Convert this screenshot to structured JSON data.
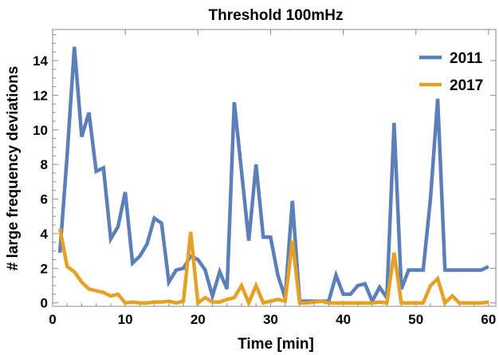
{
  "chart_data": {
    "type": "line",
    "title": "Threshold 100mHz",
    "xlabel": "Time [min]",
    "ylabel": "# large frequency deviations",
    "xlim": [
      0,
      61
    ],
    "ylim": [
      -0.2,
      15.8
    ],
    "xticks": [
      0,
      10,
      20,
      30,
      40,
      50,
      60
    ],
    "yticks": [
      0,
      2,
      4,
      6,
      8,
      10,
      12,
      14
    ],
    "grid": false,
    "legend": "top-right",
    "x": [
      1,
      2,
      3,
      4,
      5,
      6,
      7,
      8,
      9,
      10,
      11,
      12,
      13,
      14,
      15,
      16,
      17,
      18,
      19,
      20,
      21,
      22,
      23,
      24,
      25,
      26,
      27,
      28,
      29,
      30,
      31,
      32,
      33,
      34,
      35,
      36,
      37,
      38,
      39,
      40,
      41,
      42,
      43,
      44,
      45,
      46,
      47,
      48,
      49,
      50,
      51,
      52,
      53,
      54,
      55,
      56,
      57,
      58,
      59,
      60
    ],
    "series": [
      {
        "name": "2011",
        "color": "#5b7fb8",
        "values": [
          2.9,
          8.5,
          14.8,
          9.6,
          11.0,
          7.6,
          7.8,
          3.7,
          4.4,
          6.4,
          2.3,
          2.7,
          3.4,
          4.9,
          4.6,
          1.2,
          1.9,
          2.0,
          2.7,
          2.5,
          1.9,
          0.4,
          1.8,
          0.8,
          11.6,
          7.6,
          3.6,
          8.0,
          3.8,
          3.8,
          1.6,
          0.3,
          5.9,
          0.1,
          0.1,
          0.1,
          0.1,
          0.1,
          1.6,
          0.5,
          0.5,
          1.0,
          1.1,
          0.1,
          0.9,
          0.3,
          10.4,
          0.8,
          1.9,
          1.9,
          1.9,
          6.0,
          11.8,
          1.9,
          1.9,
          1.9,
          1.9,
          1.9,
          1.9,
          2.1
        ]
      },
      {
        "name": "2017",
        "color": "#e5a126",
        "values": [
          4.3,
          2.1,
          1.8,
          1.2,
          0.8,
          0.7,
          0.6,
          0.4,
          0.5,
          0.0,
          0.05,
          0.0,
          0.0,
          0.05,
          0.05,
          0.1,
          0.0,
          0.1,
          4.1,
          0.0,
          0.3,
          0.05,
          0.05,
          0.2,
          0.3,
          1.0,
          0.0,
          1.0,
          0.0,
          0.1,
          0.2,
          0.1,
          3.6,
          0.0,
          0.0,
          0.05,
          0.1,
          0.0,
          0.0,
          0.0,
          0.0,
          0.0,
          0.0,
          0.0,
          0.05,
          0.0,
          2.9,
          0.0,
          0.0,
          0.0,
          0.0,
          1.0,
          1.4,
          0.0,
          0.4,
          0.0,
          0.0,
          0.0,
          0.0,
          0.05
        ]
      }
    ]
  }
}
